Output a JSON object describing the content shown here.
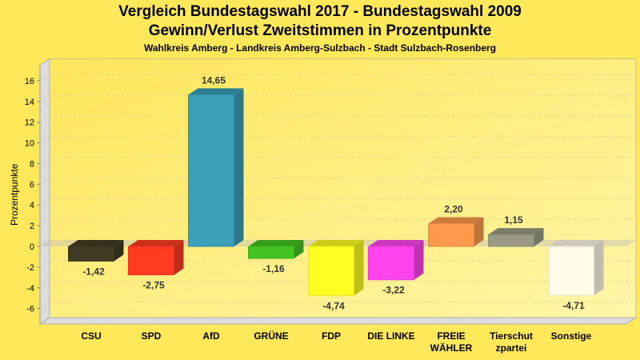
{
  "chart_data": {
    "type": "bar",
    "title": "Vergleich Bundestagswahl 2017 - Bundestagswahl 2009",
    "subtitle": "Gewinn/Verlust Zweitstimmen in Prozentpunkte",
    "subtitle2": "Wahlkreis Amberg - Landkreis Amberg-Sulzbach - Stadt Sulzbach-Rosenberg",
    "xlabel": "",
    "ylabel": "Prozentpunkte",
    "ylim": [
      -7.5,
      17.5
    ],
    "yticks": [
      16,
      14,
      12,
      10,
      8,
      6,
      4,
      2,
      0,
      -2,
      -4,
      -6
    ],
    "grid": true,
    "style": "3d",
    "categories": [
      "CSU",
      "SPD",
      "AfD",
      "GRÜNE",
      "FDP",
      "DIE LINKE",
      "FREIE WÄHLER",
      "Tierschutzpartei",
      "Sonstige"
    ],
    "category_lines": [
      [
        "CSU"
      ],
      [
        "SPD"
      ],
      [
        "AfD"
      ],
      [
        "GRÜNE"
      ],
      [
        "FDP"
      ],
      [
        "DIE LINKE"
      ],
      [
        "FREIE",
        "WÄHLER"
      ],
      [
        "Tierschut",
        "zpartei"
      ],
      [
        "Sonstige"
      ]
    ],
    "values": [
      -1.42,
      -2.75,
      14.65,
      -1.16,
      -4.74,
      -3.22,
      2.2,
      1.15,
      -4.71
    ],
    "labels": [
      "-1,42",
      "-2,75",
      "14,65",
      "-1,16",
      "-4,74",
      "-3,22",
      "2,20",
      "1,15",
      "-4,71"
    ],
    "colors": [
      "#3e3b22",
      "#ff3c22",
      "#3a9fb9",
      "#44c422",
      "#ffff22",
      "#ff44ee",
      "#ff9a4c",
      "#9a9a84",
      "#fffbe8"
    ]
  }
}
